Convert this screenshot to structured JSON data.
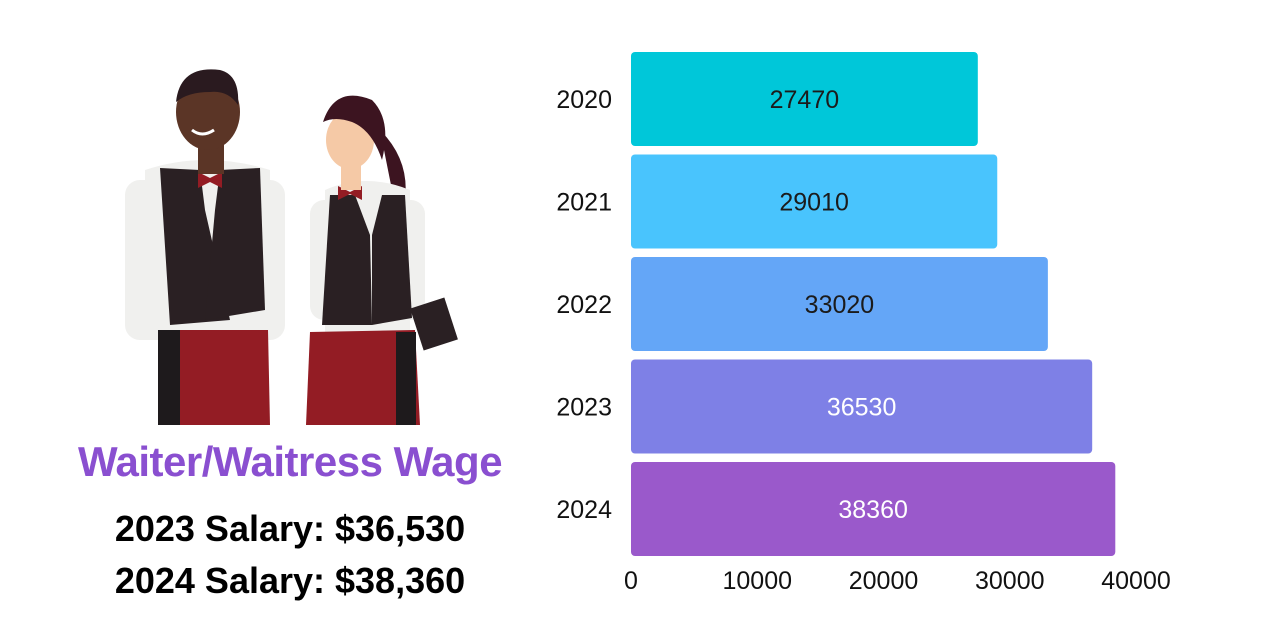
{
  "heading": {
    "title": "Waiter/Waitress Wage",
    "salary_2023": "2023 Salary: $36,530",
    "salary_2024": "2024 Salary: $38,360"
  },
  "illustration": {
    "subject": "waiter and waitress in vests, bow ties and aprons",
    "colors": {
      "vest": "#2a2023",
      "apron": "#931c24",
      "shirt": "#f0f0ee",
      "skin_waiter": "#5b3526",
      "skin_waitress": "#f5c9a6",
      "hair": "#3c1420"
    }
  },
  "chart_data": {
    "type": "bar",
    "orientation": "horizontal",
    "categories": [
      "2020",
      "2021",
      "2022",
      "2023",
      "2024"
    ],
    "values": [
      27470,
      29010,
      33020,
      36530,
      38360
    ],
    "data_labels": [
      "27470",
      "29010",
      "33020",
      "36530",
      "38360"
    ],
    "bar_colors": [
      "#00c7d9",
      "#49c4fd",
      "#64a6f7",
      "#7e80e6",
      "#9a59cb"
    ],
    "label_colors": [
      "#1b1b1b",
      "#1b1b1b",
      "#1b1b1b",
      "#ffffff",
      "#ffffff"
    ],
    "xlim": [
      0,
      40000
    ],
    "xticks": [
      "0",
      "10000",
      "20000",
      "30000",
      "40000"
    ],
    "grid": false,
    "title": "",
    "xlabel": "",
    "ylabel": ""
  }
}
